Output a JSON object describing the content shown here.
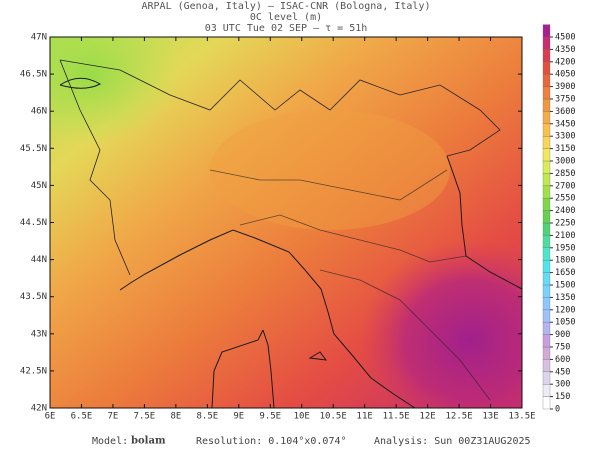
{
  "header": {
    "lines": [
      "ARPAL (Genoa, Italy)  –  ISAC-CNR (Bologna, Italy)",
      "0C level (m)",
      "03 UTC Tue 02 SEP  –  τ = 51h"
    ]
  },
  "map": {
    "lat_labels": [
      "42N",
      "42.5N",
      "43N",
      "43.5N",
      "44N",
      "44.5N",
      "45N",
      "45.5N",
      "46N",
      "46.5N",
      "47N"
    ],
    "lon_labels": [
      "6E",
      "6.5E",
      "7E",
      "7.5E",
      "8E",
      "8.5E",
      "9E",
      "9.5E",
      "10E",
      "10.5E",
      "11E",
      "11.5E",
      "12E",
      "12.5E",
      "13E",
      "13.5E"
    ]
  },
  "colorbar": {
    "levels": [
      0,
      150,
      300,
      450,
      600,
      750,
      900,
      1050,
      1200,
      1350,
      1500,
      1650,
      1800,
      1950,
      2100,
      2250,
      2400,
      2550,
      2700,
      2850,
      3000,
      3150,
      3300,
      3450,
      3600,
      3750,
      3900,
      4050,
      4200,
      4350,
      4500
    ],
    "colors": [
      "#ffffff",
      "#ececf4",
      "#dcd6ea",
      "#d8c0e0",
      "#d4a8d8",
      "#c8a0e0",
      "#b4b4f0",
      "#a0c0f8",
      "#8cc8ff",
      "#78d2ff",
      "#64dcf8",
      "#50e6f0",
      "#4ee6c8",
      "#50dca0",
      "#50d278",
      "#64d250",
      "#80d848",
      "#a0e048",
      "#c0e850",
      "#dcec58",
      "#f0e860",
      "#f8d458",
      "#f8c050",
      "#f4ac48",
      "#f09840",
      "#ec803c",
      "#e8683c",
      "#e4503e",
      "#dc3c50",
      "#cc2c70",
      "#a82090"
    ]
  },
  "footer": {
    "model_label": "Model:",
    "model": "bolam",
    "resolution": "Resolution: 0.104°x0.074°",
    "analysis": "Analysis: Sun 00Z31AUG2025"
  }
}
